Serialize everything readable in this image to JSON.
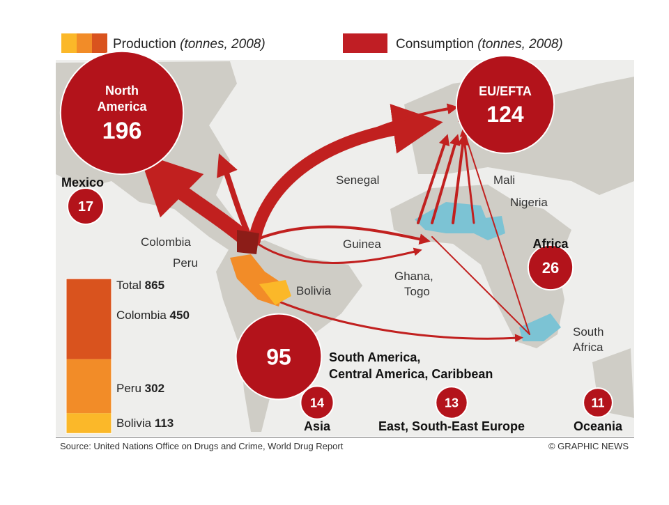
{
  "legend": {
    "production": "Production",
    "production_note": "(tonnes, 2008)",
    "consumption": "Consumption",
    "consumption_note": "(tonnes, 2008)"
  },
  "consumption": [
    {
      "label": [
        "North",
        "America"
      ],
      "value": 196
    },
    {
      "label": [
        "EU/EFTA"
      ],
      "value": 124
    },
    {
      "label": [
        "Mexico"
      ],
      "value": 17
    },
    {
      "label": [
        "Africa"
      ],
      "value": 26
    },
    {
      "label": [
        "South America,",
        "Central America, Caribbean"
      ],
      "value": 95
    },
    {
      "label": [
        "Asia"
      ],
      "value": 14
    },
    {
      "label": [
        "East, South-East Europe"
      ],
      "value": 13
    },
    {
      "label": [
        "Oceania"
      ],
      "value": 11
    }
  ],
  "production": {
    "total_label": "Total",
    "total": 865,
    "items": [
      {
        "name": "Colombia",
        "value": 450,
        "color": "#d9531e"
      },
      {
        "name": "Peru",
        "value": 302,
        "color": "#f28c28"
      },
      {
        "name": "Bolivia",
        "value": 113,
        "color": "#fbb829"
      }
    ]
  },
  "places": [
    "Colombia",
    "Peru",
    "Bolivia",
    "Senegal",
    "Mali",
    "Nigeria",
    "Guinea",
    "Ghana,",
    "Togo",
    "South",
    "Africa"
  ],
  "circle_color": "#b3131b",
  "source": "Source: United Nations Office on Drugs and Crime, World Drug Report",
  "credit": "© GRAPHIC NEWS"
}
